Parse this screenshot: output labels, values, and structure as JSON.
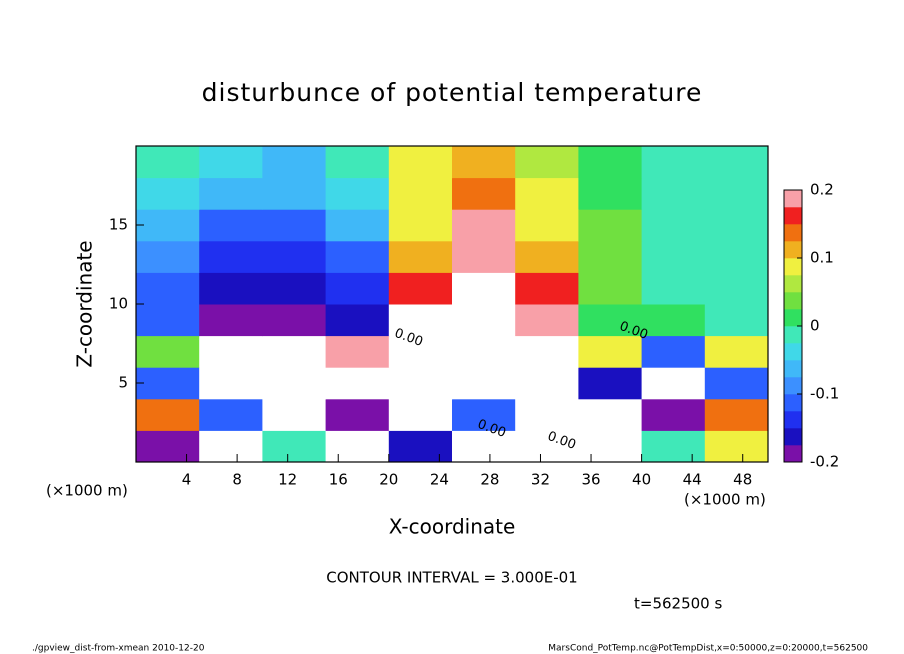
{
  "chart_data": {
    "type": "heatmap",
    "title": "disturbunce of potential temperature",
    "x_label": "X-coordinate",
    "y_label": "Z-coordinate",
    "x_unit": "(×1000 m)",
    "y_unit": "(×1000 m)",
    "contour_interval": "CONTOUR INTERVAL = 3.000E-01",
    "time_label": "t=562500 s",
    "footer_left": "./gpview_dist-from-xmean  2010-12-20",
    "footer_right": "MarsCond_PotTemp.nc@PotTempDist,x=0:50000,z=0:20000,t=562500",
    "contour_labels": [
      "0.00",
      "0.00",
      "0.00",
      "0.00"
    ],
    "xlim": [
      0,
      50
    ],
    "ylim": [
      0,
      20
    ],
    "xticks": [
      4,
      8,
      12,
      16,
      20,
      24,
      28,
      32,
      36,
      40,
      44,
      48
    ],
    "yticks": [
      5,
      10,
      15
    ],
    "xbins": [
      0,
      5,
      10,
      15,
      20,
      25,
      30,
      35,
      40,
      45,
      50
    ],
    "zbins": [
      0,
      2,
      4,
      6,
      8,
      10,
      12,
      14,
      16,
      18,
      20
    ],
    "values": [
      [
        -0.2,
        0.3,
        0.0,
        0.3,
        -0.15,
        0.3,
        -0.25,
        0.3,
        0.0,
        0.1
      ],
      [
        0.15,
        -0.1,
        0.3,
        -0.2,
        0.3,
        -0.1,
        0.3,
        0.3,
        -0.2,
        0.15
      ],
      [
        -0.1,
        0.3,
        -0.3,
        0.25,
        -0.3,
        0.3,
        0.3,
        -0.15,
        0.25,
        -0.1
      ],
      [
        0.05,
        0.3,
        0.3,
        0.2,
        0.25,
        0.3,
        0.28,
        0.1,
        -0.1,
        0.1
      ],
      [
        -0.12,
        -0.19,
        -0.19,
        -0.17,
        0.22,
        0.3,
        0.2,
        0.02,
        0.01,
        0.0
      ],
      [
        -0.1,
        -0.16,
        -0.17,
        -0.14,
        0.16,
        0.25,
        0.16,
        0.03,
        0.0,
        0.0
      ],
      [
        -0.08,
        -0.13,
        -0.14,
        -0.1,
        0.12,
        0.2,
        0.12,
        0.03,
        0.0,
        -0.01
      ],
      [
        -0.06,
        -0.1,
        -0.1,
        -0.06,
        0.1,
        0.18,
        0.1,
        0.03,
        0.0,
        -0.02
      ],
      [
        -0.03,
        -0.06,
        -0.07,
        -0.03,
        0.08,
        0.15,
        0.08,
        0.02,
        0.0,
        -0.01
      ],
      [
        0.0,
        -0.04,
        -0.05,
        0.0,
        0.08,
        0.12,
        0.06,
        0.02,
        0.0,
        0.0
      ]
    ],
    "colorbar": {
      "lim": [
        -0.2,
        0.2
      ],
      "ticks": [
        0.2,
        0.1,
        0,
        -0.1,
        -0.2
      ],
      "levels": [
        -0.2,
        -0.175,
        -0.15,
        -0.125,
        -0.1,
        -0.075,
        -0.05,
        -0.025,
        0,
        0.025,
        0.05,
        0.075,
        0.1,
        0.125,
        0.15,
        0.175,
        0.2
      ],
      "colors": [
        "#7a10a8",
        "#1a10c0",
        "#2030f0",
        "#2c60ff",
        "#3c90ff",
        "#40b8f8",
        "#40d8e8",
        "#40e8b8",
        "#30e060",
        "#70e040",
        "#b0e840",
        "#f0f040",
        "#f0b020",
        "#f07010",
        "#f02020",
        "#f8a0a8"
      ]
    },
    "out_of_range_color": "#ffffff"
  }
}
